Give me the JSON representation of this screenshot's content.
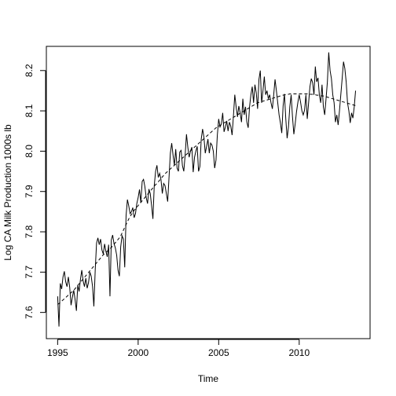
{
  "chart_data": {
    "type": "line",
    "title": "",
    "xlabel": "Time",
    "ylabel": "Log CA Milk Production 1000s lb",
    "xlim": [
      1994.3,
      2014.4
    ],
    "ylim": [
      7.535,
      8.26
    ],
    "xticks": [
      1995,
      2000,
      2005,
      2010
    ],
    "yticks": [
      7.6,
      7.7,
      7.8,
      7.9,
      8.0,
      8.1,
      8.2
    ],
    "xtick_labels": [
      "1995",
      "2000",
      "2005",
      "2010"
    ],
    "ytick_labels": [
      "7.6",
      "7.7",
      "7.8",
      "7.9",
      "8.0",
      "8.1",
      "8.2"
    ],
    "grid": false,
    "legend": "none",
    "series": [
      {
        "style": "solid",
        "x_start": 1995.0,
        "x_step": 0.083333,
        "values": [
          7.64,
          7.565,
          7.672,
          7.658,
          7.688,
          7.702,
          7.676,
          7.664,
          7.688,
          7.662,
          7.618,
          7.638,
          7.655,
          7.632,
          7.604,
          7.668,
          7.652,
          7.682,
          7.705,
          7.678,
          7.664,
          7.685,
          7.66,
          7.674,
          7.7,
          7.69,
          7.665,
          7.615,
          7.705,
          7.772,
          7.785,
          7.768,
          7.782,
          7.755,
          7.745,
          7.77,
          7.751,
          7.738,
          7.768,
          7.64,
          7.78,
          7.792,
          7.771,
          7.76,
          7.742,
          7.705,
          7.69,
          7.763,
          7.79,
          7.782,
          7.712,
          7.84,
          7.88,
          7.864,
          7.845,
          7.85,
          7.86,
          7.835,
          7.845,
          7.87,
          7.885,
          7.905,
          7.872,
          7.925,
          7.93,
          7.912,
          7.885,
          7.87,
          7.906,
          7.895,
          7.865,
          7.832,
          7.915,
          7.95,
          7.965,
          7.935,
          7.945,
          7.93,
          7.895,
          7.92,
          7.915,
          7.895,
          7.875,
          7.935,
          7.995,
          8.02,
          7.99,
          7.965,
          8.005,
          7.958,
          7.95,
          7.998,
          8.002,
          7.964,
          7.95,
          7.99,
          8.042,
          8.01,
          7.985,
          8.0,
          8.01,
          7.948,
          7.985,
          8.0,
          8.012,
          7.95,
          7.962,
          8.03,
          8.055,
          8.035,
          7.995,
          8.012,
          8.03,
          7.995,
          8.02,
          8.015,
          8.0,
          7.958,
          7.978,
          8.04,
          8.08,
          8.06,
          8.068,
          8.095,
          8.048,
          8.06,
          8.075,
          8.05,
          8.072,
          8.062,
          8.04,
          8.088,
          8.14,
          8.11,
          8.085,
          8.112,
          8.095,
          8.072,
          8.13,
          8.09,
          8.11,
          8.072,
          8.058,
          8.11,
          8.14,
          8.16,
          8.12,
          8.165,
          8.145,
          8.105,
          8.178,
          8.2,
          8.12,
          8.15,
          8.185,
          8.14,
          8.15,
          8.13,
          8.14,
          8.12,
          8.105,
          8.14,
          8.178,
          8.15,
          8.12,
          8.09,
          8.07,
          8.045,
          8.112,
          8.142,
          8.08,
          8.032,
          8.06,
          8.11,
          8.14,
          8.085,
          8.042,
          8.068,
          8.098,
          8.121,
          8.14,
          8.122,
          8.1,
          8.09,
          8.102,
          8.14,
          8.08,
          8.12,
          8.16,
          8.18,
          8.17,
          8.14,
          8.21,
          8.172,
          8.182,
          8.14,
          8.12,
          8.165,
          8.11,
          8.09,
          8.13,
          8.172,
          8.245,
          8.2,
          8.18,
          8.14,
          8.12,
          8.072,
          8.09,
          8.065,
          8.1,
          8.14,
          8.18,
          8.222,
          8.205,
          8.172,
          8.12,
          8.1,
          8.07,
          8.095,
          8.082,
          8.11,
          8.15
        ]
      },
      {
        "style": "dashed",
        "x_start": 1995.0,
        "x_step": 0.083333,
        "values": [
          7.62,
          7.622,
          7.625,
          7.628,
          7.631,
          7.634,
          7.637,
          7.64,
          7.643,
          7.646,
          7.649,
          7.652,
          7.655,
          7.659,
          7.663,
          7.667,
          7.671,
          7.675,
          7.679,
          7.683,
          7.687,
          7.691,
          7.695,
          7.699,
          7.703,
          7.707,
          7.711,
          7.715,
          7.719,
          7.723,
          7.727,
          7.731,
          7.735,
          7.739,
          7.743,
          7.746,
          7.749,
          7.752,
          7.755,
          7.758,
          7.761,
          7.765,
          7.769,
          7.773,
          7.777,
          7.781,
          7.785,
          7.79,
          7.797,
          7.804,
          7.811,
          7.818,
          7.825,
          7.832,
          7.838,
          7.843,
          7.848,
          7.853,
          7.857,
          7.861,
          7.865,
          7.869,
          7.873,
          7.877,
          7.881,
          7.885,
          7.889,
          7.893,
          7.897,
          7.901,
          7.905,
          7.909,
          7.913,
          7.917,
          7.92,
          7.924,
          7.928,
          7.932,
          7.936,
          7.94,
          7.944,
          7.947,
          7.95,
          7.953,
          7.956,
          7.959,
          7.962,
          7.965,
          7.968,
          7.971,
          7.974,
          7.977,
          7.98,
          7.983,
          7.986,
          7.989,
          7.992,
          7.995,
          7.998,
          8.001,
          8.004,
          8.007,
          8.01,
          8.013,
          8.016,
          8.019,
          8.022,
          8.025,
          8.028,
          8.031,
          8.034,
          8.037,
          8.04,
          8.043,
          8.046,
          8.049,
          8.052,
          8.055,
          8.058,
          8.06,
          8.062,
          8.064,
          8.066,
          8.068,
          8.07,
          8.072,
          8.074,
          8.076,
          8.078,
          8.08,
          8.082,
          8.084,
          8.086,
          8.088,
          8.09,
          8.092,
          8.094,
          8.096,
          8.098,
          8.1,
          8.102,
          8.104,
          8.106,
          8.108,
          8.11,
          8.112,
          8.114,
          8.116,
          8.118,
          8.12,
          8.121,
          8.122,
          8.123,
          8.124,
          8.125,
          8.126,
          8.127,
          8.128,
          8.129,
          8.13,
          8.131,
          8.132,
          8.133,
          8.134,
          8.135,
          8.136,
          8.137,
          8.138,
          8.139,
          8.14,
          8.14,
          8.141,
          8.141,
          8.142,
          8.142,
          8.142,
          8.142,
          8.142,
          8.142,
          8.142,
          8.142,
          8.142,
          8.142,
          8.142,
          8.142,
          8.142,
          8.142,
          8.142,
          8.141,
          8.141,
          8.141,
          8.14,
          8.14,
          8.139,
          8.139,
          8.138,
          8.138,
          8.137,
          8.137,
          8.136,
          8.135,
          8.134,
          8.133,
          8.132,
          8.131,
          8.13,
          8.129,
          8.128,
          8.127,
          8.126,
          8.125,
          8.124,
          8.123,
          8.122,
          8.121,
          8.12,
          8.119,
          8.118,
          8.117,
          8.116,
          8.115,
          8.114,
          8.113
        ]
      }
    ]
  }
}
